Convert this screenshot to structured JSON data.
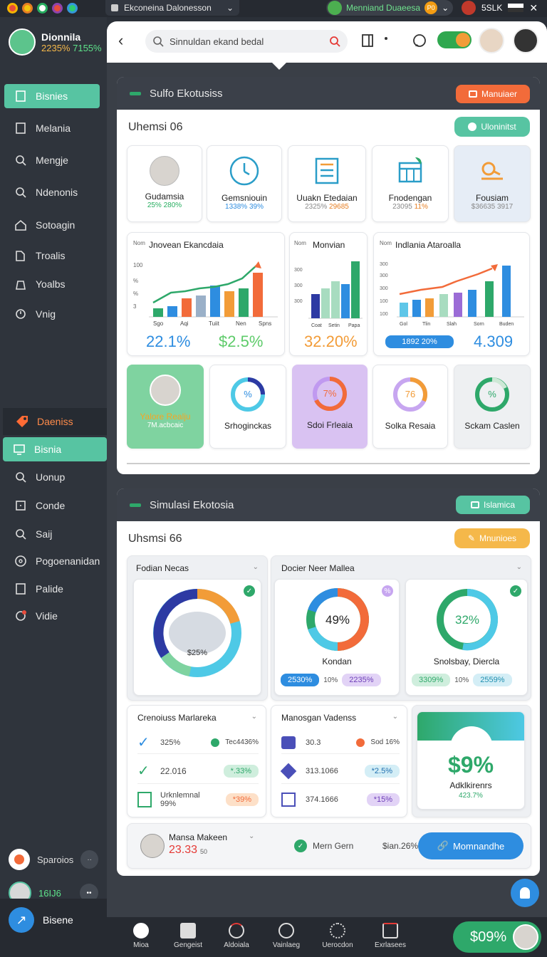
{
  "titlebar": {
    "app_title": "Ekconeina Dalonesson",
    "user_name": "Menniand Duaeesa",
    "user_badge": "P0",
    "right_label": "5SLK"
  },
  "sidebar": {
    "profile": {
      "name": "Dionnila",
      "stat_a": "2235%",
      "stat_b": "7155%"
    },
    "items": [
      {
        "label": "Bisnies",
        "icon": "document-icon",
        "active": true
      },
      {
        "label": "Melania",
        "icon": "page-icon"
      },
      {
        "label": "Mengje",
        "icon": "search-icon"
      },
      {
        "label": "Ndenonis",
        "icon": "search-icon"
      },
      {
        "label": "Sotoagin",
        "icon": "home-icon"
      },
      {
        "label": "Troalis",
        "icon": "folder-icon"
      },
      {
        "label": "Yoalbs",
        "icon": "bag-icon"
      },
      {
        "label": "Vnig",
        "icon": "clock-icon"
      }
    ],
    "section_header": "Daeniss",
    "items2": [
      {
        "label": "Bisnia",
        "icon": "monitor-icon",
        "active": true
      },
      {
        "label": "Uonup",
        "icon": "search-icon"
      },
      {
        "label": "Conde",
        "icon": "square-icon"
      },
      {
        "label": "Saij",
        "icon": "search-icon"
      },
      {
        "label": "Pogoenanidan",
        "icon": "circle-icon"
      },
      {
        "label": "Palide",
        "icon": "page-icon"
      },
      {
        "label": "Vidie",
        "icon": "notification-icon"
      }
    ],
    "footer": {
      "user1": "Sparoios",
      "user2_stat": "16IJ6",
      "user3": "Bisene"
    }
  },
  "toolbar": {
    "search_placeholder": "Sinnuldan ekand bedal"
  },
  "panel1": {
    "header": "Sulfo Ekotusiss",
    "header_button": "Manuiaer",
    "subtitle": "Uhemsi 06",
    "action_button": "Uloninitst",
    "kpis": [
      {
        "label": "Gudamsia",
        "a": "25%",
        "b": "280%",
        "icon": "person-avatar"
      },
      {
        "label": "Gemsniouin",
        "a": "1338%",
        "b": "39%",
        "icon": "clock-icon"
      },
      {
        "label": "Uuakn Etedaian",
        "a": "2325%",
        "b": "29685",
        "icon": "building-icon"
      },
      {
        "label": "Fnodengan",
        "a": "23095",
        "b": "11%",
        "icon": "calculator-icon"
      },
      {
        "label": "Fousiam",
        "a": "$36635",
        "b": "3917",
        "icon": "key-icon"
      }
    ],
    "charts": [
      {
        "title": "Jnovean Ekancdaia",
        "yaxis": "Nom",
        "yticks": [
          "100",
          "%",
          "%",
          "3",
          "0"
        ],
        "xticks": [
          "Sgo",
          "Aqi",
          "Tuiit",
          "Nen",
          "Spns"
        ],
        "big": "22.1%",
        "big2": "$2.5%"
      },
      {
        "title": "Monvian",
        "yaxis": "Nom",
        "yticks": [
          "300",
          "300",
          "300",
          "100"
        ],
        "xticks": [
          "Coat",
          "Setin",
          "Papa"
        ],
        "big": "32.20%"
      },
      {
        "title": "Indlania Ataroalla",
        "yaxis": "Nom",
        "yticks": [
          "300",
          "300",
          "300",
          "100",
          "100"
        ],
        "xticks": [
          "Gol",
          "Tlin",
          "Slah",
          "Sorn",
          "Buden"
        ],
        "chip": "1892 20%",
        "big": "4.309"
      }
    ],
    "tiles": [
      {
        "label": "Yalore Realju",
        "sub": "7M.acbcaic",
        "type": "profile"
      },
      {
        "label": "Srhoginckas",
        "value": "%"
      },
      {
        "label": "Sdoi Frleaia",
        "value": "7%"
      },
      {
        "label": "Solka Resaia",
        "value": "76"
      },
      {
        "label": "Sckam Caslen",
        "value": "%"
      }
    ]
  },
  "panel2": {
    "header": "Simulasi Ekotosia",
    "header_button": "Islamica",
    "subtitle": "Uhsmsi 66",
    "secondary_button": "Mnunioes",
    "section_a": "Fodian Necas",
    "section_b": "Docier Neer Mallea",
    "map_value": "$25%",
    "donut1": {
      "value": "49%",
      "label": "Kondan",
      "chip_a": "2530%",
      "chip_mid": "10%",
      "chip_b": "2235%"
    },
    "donut2": {
      "value": "32%",
      "label": "Snolsbay, Diercla",
      "chip_a": "3309%",
      "chip_mid": "10%",
      "chip_b": "2559%"
    },
    "list_a": {
      "title": "Crenoiuss Marlareka",
      "rows": [
        {
          "a": "325%",
          "b": "Tec4436%"
        },
        {
          "a": "22.016",
          "b": "*.33%"
        },
        {
          "a": "Urknlemnal 99%",
          "b": "*39%"
        }
      ]
    },
    "list_b": {
      "title": "Manosgan Vadenss",
      "rows": [
        {
          "a": "30.3",
          "b": "Sod 16%"
        },
        {
          "a": "313.1066",
          "b": "*2.5%"
        },
        {
          "a": "374.1666",
          "b": "*15%"
        }
      ]
    },
    "highlight": {
      "value": "$9%",
      "label": "Adklkirenrs",
      "sub": "423.7%"
    },
    "footer_user": {
      "name": "Mansa Makeen",
      "value": "23.33",
      "sub": "50"
    },
    "footer_center": "Mern Gern",
    "footer_value": "$ian.26%",
    "footer_button": "Momnandhe"
  },
  "bottombar": {
    "items": [
      "Mioa",
      "Gengeist",
      "Aldoiala",
      "Vainlaeg",
      "Uerocdon",
      "Exrlasees"
    ],
    "score": "$09%"
  },
  "colors": {
    "accent": "#57c4a2",
    "orange": "#f26b3a",
    "blue": "#2e8de0",
    "purple": "#9b6cd6"
  }
}
